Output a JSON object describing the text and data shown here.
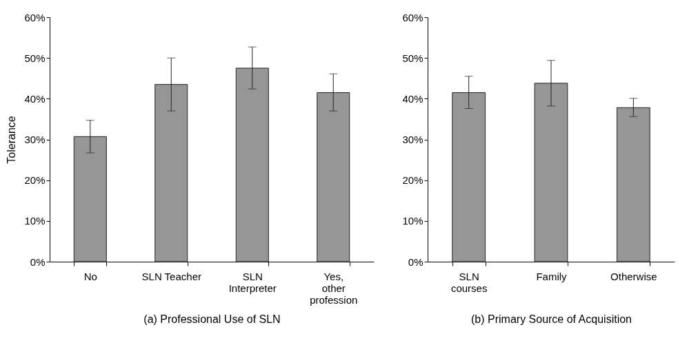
{
  "chart_data": [
    {
      "type": "bar",
      "xlabel": "(a) Professional Use of SLN",
      "ylabel": "Tolerance",
      "categories": [
        "No",
        "SLN Teacher",
        "SLN\nInterpreter",
        "Yes,\nother\nprofession"
      ],
      "values": [
        30.7,
        43.5,
        47.5,
        41.5
      ],
      "errors": [
        [
          26.7,
          34.7
        ],
        [
          37.0,
          50.0
        ],
        [
          42.4,
          52.7
        ],
        [
          37.0,
          46.1
        ]
      ],
      "color": "#969696",
      "ylim": [
        0,
        60
      ],
      "yticks": [
        {
          "value": 0,
          "label": "0%"
        },
        {
          "value": 10,
          "label": "10%"
        },
        {
          "value": 20,
          "label": "20%"
        },
        {
          "value": 30,
          "label": "30%"
        },
        {
          "value": 40,
          "label": "40%"
        },
        {
          "value": 50,
          "label": "50%"
        },
        {
          "value": 60,
          "label": "60%"
        }
      ],
      "grid": false
    },
    {
      "type": "bar",
      "xlabel": "(b) Primary Source of Acquisition",
      "categories": [
        "SLN\ncourses",
        "Family",
        "Otherwise"
      ],
      "values": [
        41.5,
        43.8,
        37.8
      ],
      "errors": [
        [
          37.6,
          45.5
        ],
        [
          38.2,
          49.4
        ],
        [
          35.6,
          40.1
        ]
      ],
      "color": "#969696",
      "ylim": [
        0,
        60
      ],
      "yticks": [
        {
          "value": 0,
          "label": "0%"
        },
        {
          "value": 10,
          "label": "10%"
        },
        {
          "value": 20,
          "label": "20%"
        },
        {
          "value": 30,
          "label": "30%"
        },
        {
          "value": 40,
          "label": "40%"
        },
        {
          "value": 50,
          "label": "50%"
        },
        {
          "value": 60,
          "label": "60%"
        }
      ],
      "grid": false
    }
  ]
}
